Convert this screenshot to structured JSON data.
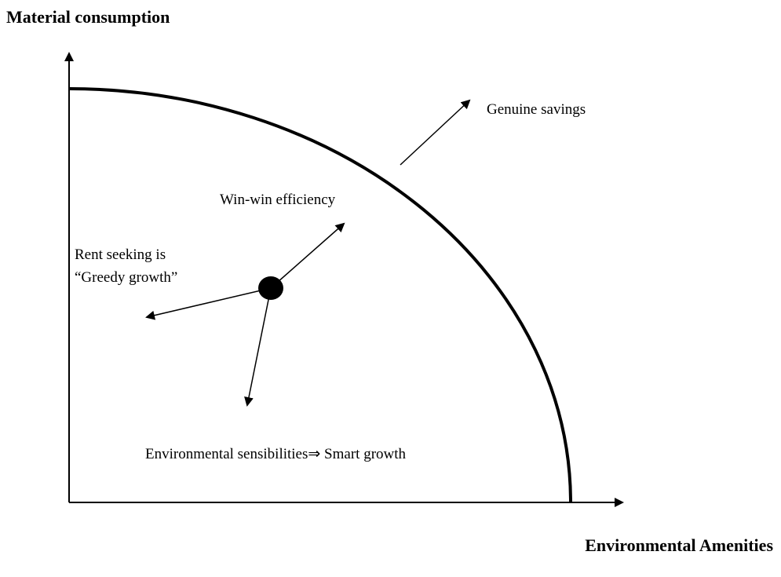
{
  "header": {
    "title": "Material consumption"
  },
  "axes": {
    "x_label": "Environmental Amenities"
  },
  "labels": {
    "genuine_savings": "Genuine savings",
    "win_win": "Win-win efficiency",
    "rent_seeking": [
      "Rent seeking is",
      "“Greedy growth”"
    ],
    "smart_growth": "Environmental sensibilities⇒ Smart growth"
  }
}
